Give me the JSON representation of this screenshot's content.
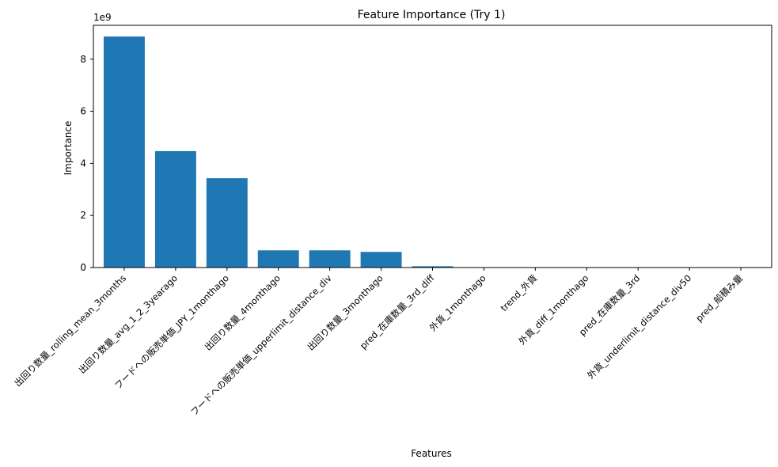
{
  "chart_data": {
    "type": "bar",
    "title": "Feature Importance (Try 1)",
    "xlabel": "Features",
    "ylabel": "Importance",
    "y_offset_label": "1e9",
    "ylim": [
      0,
      9.3
    ],
    "yticks": [
      0,
      2,
      4,
      6,
      8
    ],
    "grid": false,
    "bar_color": "#1f77b4",
    "categories": [
      "出回り数量_rolling_mean_3months",
      "出回り数量_avg_1_2_3yearago",
      "フードへの販売単価_JPY_1monthago",
      "出回り数量_4monthago",
      "フードへの販売単価_upperlimit_distance_div",
      "出回り数量_3monthago",
      "pred_在庫数量_3rd_diff",
      "外貨_1monthago",
      "trend_外貨",
      "外貨_diff_1monthago",
      "pred_在庫数量_3rd",
      "外貨_underlimit_distance_div50",
      "pred_船積み量"
    ],
    "values": [
      8.87,
      4.47,
      3.43,
      0.66,
      0.66,
      0.6,
      0.05,
      0.005,
      0.004,
      0.003,
      0.003,
      0.002,
      0.002
    ]
  }
}
